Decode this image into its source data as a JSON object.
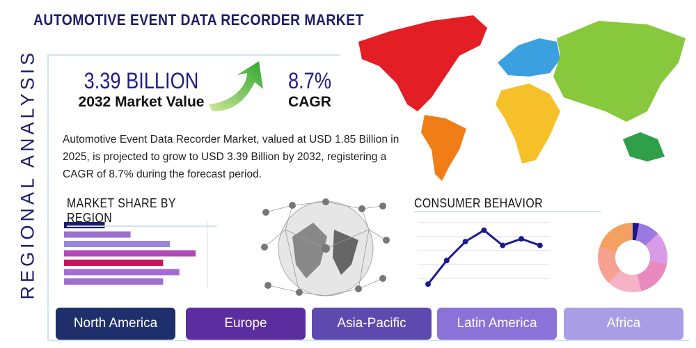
{
  "header": {
    "title": "AUTOMOTIVE EVENT DATA RECORDER MARKET"
  },
  "side_label": "REGIONAL ANALYSIS",
  "stats": [
    {
      "value": "3.39 BILLION",
      "label": "2032 Market Value"
    },
    {
      "value": "8.7%",
      "label": "CAGR"
    }
  ],
  "description": "Automotive Event Data Recorder Market, valued at USD 1.85 Billion in 2025, is projected to grow to USD 3.39 Billion by 2032, registering a CAGR of 8.7% during the forecast period.",
  "market_share": {
    "title": "MARKET SHARE BY REGION",
    "values": [
      30,
      49,
      78,
      97,
      73,
      85,
      73
    ],
    "colors": [
      "#1a1a6e",
      "#9b6fd0",
      "#9a86e0",
      "#b04bb5",
      "#c2185b",
      "#a46bd6",
      "#9b6fd0"
    ]
  },
  "consumer_behavior": {
    "title": "CONSUMER BEHAVIOR",
    "values": [
      5,
      30,
      50,
      62,
      46,
      53,
      46
    ],
    "ylim": [
      0,
      70
    ],
    "color": "#1a1a8e"
  },
  "donut": {
    "values": [
      3,
      10,
      15,
      18,
      16,
      18,
      20
    ],
    "colors": [
      "#1a1a8e",
      "#9a7ae0",
      "#d79be8",
      "#e88ac0",
      "#f6b3c8",
      "#f5a090",
      "#f3a060"
    ]
  },
  "regions": [
    {
      "name": "North America",
      "color": "#1f2f6b"
    },
    {
      "name": "Europe",
      "color": "#5b2d9e"
    },
    {
      "name": "Asia-Pacific",
      "color": "#5c4aae"
    },
    {
      "name": "Latin America",
      "color": "#8a72d8"
    },
    {
      "name": "Africa",
      "color": "#a99ee6"
    }
  ]
}
